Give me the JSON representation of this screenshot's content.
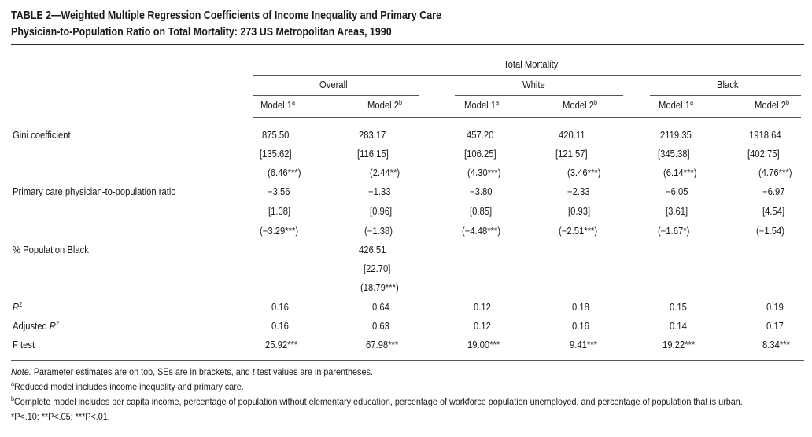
{
  "title": {
    "line1": "TABLE 2—Weighted Multiple Regression Coefficients of Income Inequality and Primary Care",
    "line2": "Physician-to-Population Ratio on Total Mortality: 273 US Metropolitan Areas, 1990"
  },
  "header": {
    "spanner": "Total Mortality",
    "groups": [
      "Overall",
      "White",
      "Black"
    ],
    "models": [
      {
        "name": "Model 1",
        "sup": "a"
      },
      {
        "name": "Model 2",
        "sup": "b"
      },
      {
        "name": "Model 1",
        "sup": "a"
      },
      {
        "name": "Model 2",
        "sup": "b"
      },
      {
        "name": "Model 1",
        "sup": "a"
      },
      {
        "name": "Model 2",
        "sup": "b"
      }
    ]
  },
  "rows": {
    "gini": {
      "label": "Gini coefficient",
      "coef": [
        "875.50",
        "283.17",
        "457.20",
        "420.11",
        "2119.35",
        "1918.64"
      ],
      "se": [
        "[135.62]",
        "[116.15]",
        "[106.25]",
        "[121.57]",
        "[345.38]",
        "[402.75]"
      ],
      "t": [
        "(6.46***)",
        "(2.44**)",
        "(4.30***)",
        "(3.46***)",
        "(6.14***)",
        "(4.76***)"
      ]
    },
    "pcp": {
      "label": "Primary care physician-to-population ratio",
      "coef": [
        "−3.56",
        "−1.33",
        "−3.80",
        "−2.33",
        "−6.05",
        "−6.97"
      ],
      "se": [
        "[1.08]",
        "[0.96]",
        "[0.85]",
        "[0.93]",
        "[3.61]",
        "[4.54]"
      ],
      "t": [
        "(−3.29***)",
        "(−1.38)",
        "(−4.48***)",
        "(−2.51***)",
        "(−1.67*)",
        "(−1.54)"
      ]
    },
    "black": {
      "label": "% Population Black",
      "coef": "426.51",
      "se": "[22.70]",
      "t": "(18.79***)"
    },
    "r2": {
      "label": "R",
      "values": [
        "0.16",
        "0.64",
        "0.12",
        "0.18",
        "0.15",
        "0.19"
      ]
    },
    "adjr2": {
      "label_prefix": "Adjusted ",
      "label": "R",
      "values": [
        "0.16",
        "0.63",
        "0.12",
        "0.16",
        "0.14",
        "0.17"
      ]
    },
    "ftest": {
      "label": "F test",
      "values": [
        "25.92***",
        "67.98***",
        "19.00***",
        "9.41***",
        "19.22***",
        "8.34***"
      ]
    }
  },
  "notes": {
    "note_label": "Note.",
    "note_text_1": " Parameter estimates are on top, SEs are in brackets, and ",
    "note_t": "t",
    "note_text_2": " test values are in parentheses.",
    "a": "Reduced model includes income inequality and primary care.",
    "b": "Complete model includes per capita income, percentage of population without elementary education, percentage of workforce population unemployed, and percentage of population that is urban.",
    "sig": "*P<.10; **P<.05; ***P<.01."
  }
}
